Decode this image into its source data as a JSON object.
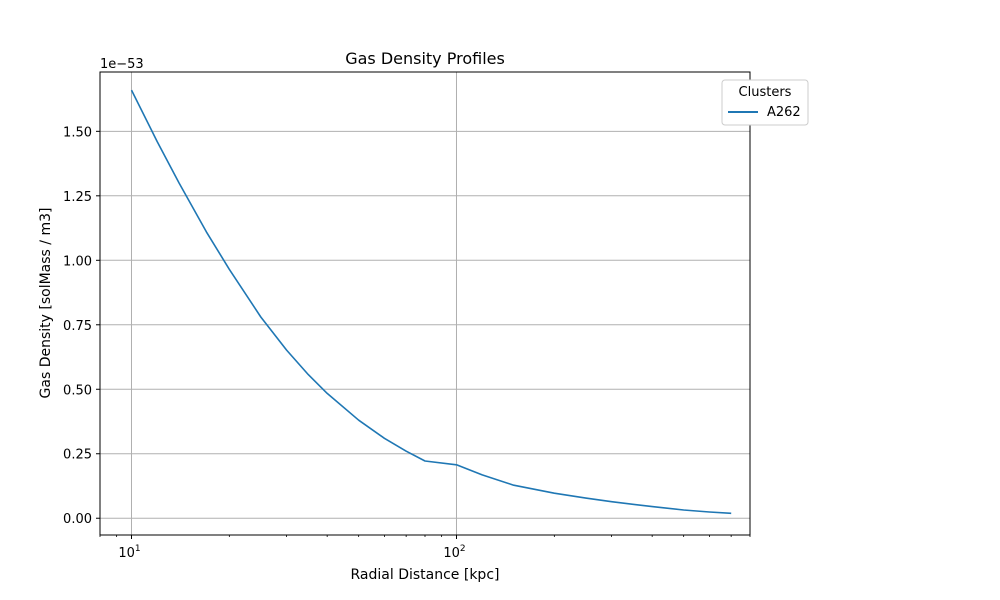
{
  "chart_data": {
    "type": "line",
    "title": "Gas Density Profiles",
    "xlabel": "Radial Distance [kpc]",
    "ylabel": "Gas Density [solMass / m3]",
    "y_offset_label": "1e−53",
    "x_scale": "log",
    "xlim": [
      8.0,
      800
    ],
    "ylim": [
      -0.065,
      1.73
    ],
    "x_ticks": [
      {
        "value": 10,
        "base": "10",
        "exp": "1"
      },
      {
        "value": 100,
        "base": "10",
        "exp": "2"
      }
    ],
    "y_ticks": [
      0.0,
      0.25,
      0.5,
      0.75,
      1.0,
      1.25,
      1.5
    ],
    "y_tick_labels": [
      "0.00",
      "0.25",
      "0.50",
      "0.75",
      "1.00",
      "1.25",
      "1.50"
    ],
    "grid": true,
    "legend": {
      "title": "Clusters",
      "placement": "upper-right-outside"
    },
    "series": [
      {
        "name": "A262",
        "color": "#1f77b4",
        "x": [
          10,
          12,
          14,
          17,
          20,
          25,
          30,
          35,
          40,
          50,
          60,
          70,
          80,
          100,
          120,
          150,
          200,
          250,
          300,
          400,
          500,
          600,
          700
        ],
        "y": [
          1.66,
          1.46,
          1.3,
          1.11,
          0.965,
          0.78,
          0.652,
          0.557,
          0.484,
          0.38,
          0.31,
          0.26,
          0.222,
          0.207,
          0.168,
          0.128,
          0.097,
          0.078,
          0.064,
          0.045,
          0.032,
          0.024,
          0.019
        ]
      }
    ]
  }
}
